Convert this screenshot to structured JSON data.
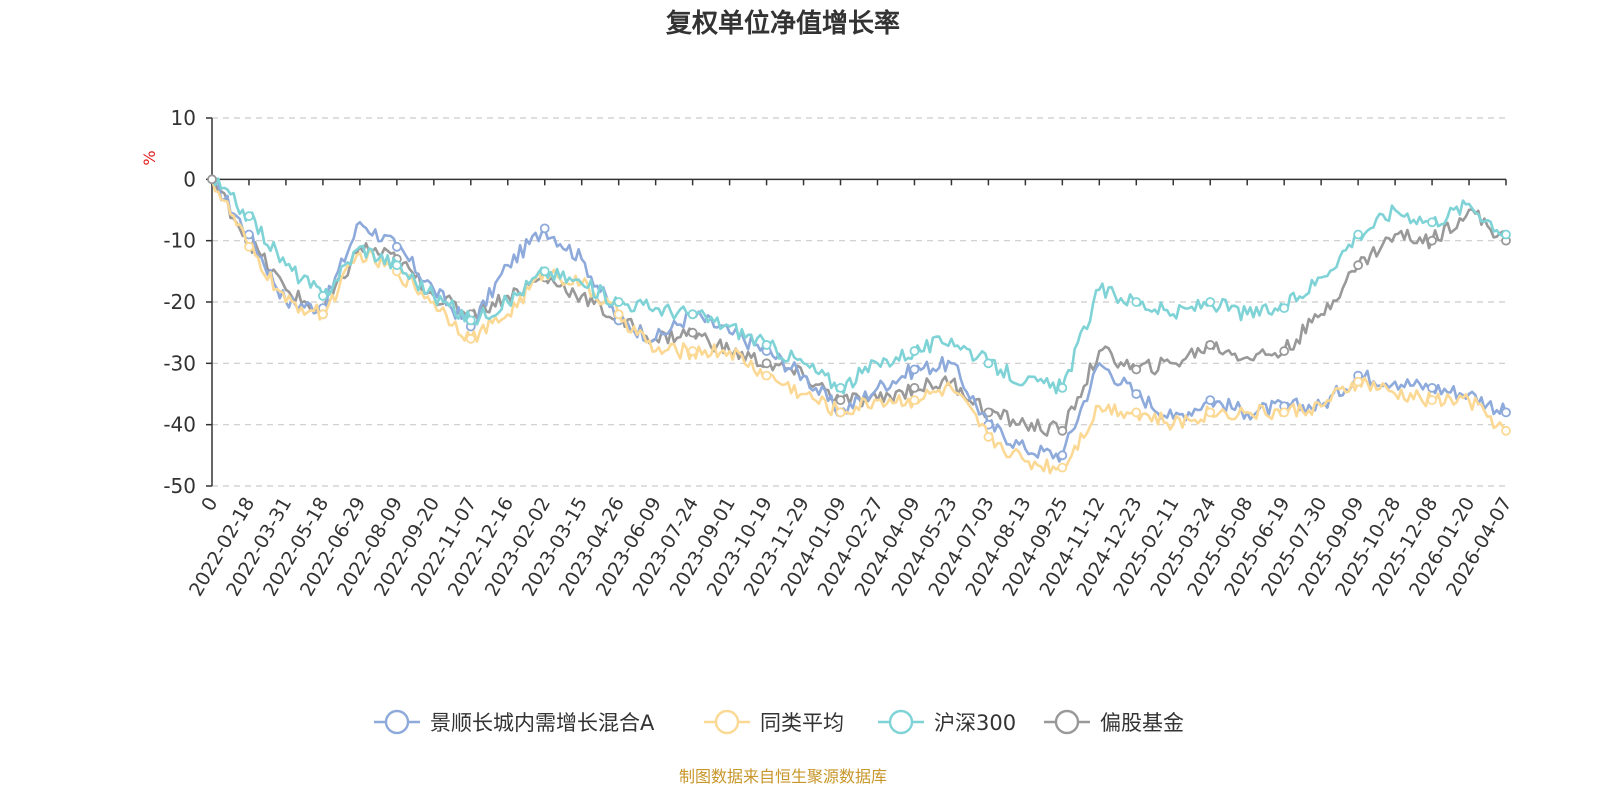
{
  "chart_data": {
    "type": "line",
    "title": "复权单位净值增长率",
    "ylabel": "%",
    "ylim": [
      -50,
      10
    ],
    "yticks": [
      10,
      0,
      -10,
      -20,
      -30,
      -40,
      -50
    ],
    "grid": true,
    "legend_position": "bottom-center",
    "source": "制图数据来自恒生聚源数据库",
    "x_ticks": [
      "0",
      "2022-02-18",
      "2022-03-31",
      "2022-05-18",
      "2022-06-29",
      "2022-08-09",
      "2022-09-20",
      "2022-11-07",
      "2022-12-16",
      "2023-02-02",
      "2023-03-15",
      "2023-04-26",
      "2023-06-09",
      "2023-07-24",
      "2023-09-01",
      "2023-10-19",
      "2023-11-29",
      "2024-01-09",
      "2024-02-27",
      "2024-04-09",
      "2024-05-23",
      "2024-07-03",
      "2024-08-13",
      "2024-09-25",
      "2024-11-12",
      "2024-12-23",
      "2025-02-11",
      "2025-03-24",
      "2025-05-08",
      "2025-06-19",
      "2025-07-30",
      "2025-09-09",
      "2025-10-28",
      "2025-12-08",
      "2026-01-20",
      "2026-04-07"
    ],
    "series": [
      {
        "name": "景顺长城内需增长混合A",
        "color": "#8eaadb",
        "values": [
          0,
          -9,
          -20,
          -21,
          -7,
          -11,
          -18,
          -24,
          -14,
          -8,
          -13,
          -23,
          -26,
          -22,
          -25,
          -28,
          -32,
          -38,
          -34,
          -31,
          -30,
          -40,
          -44,
          -45,
          -30,
          -35,
          -39,
          -36,
          -38,
          -37,
          -37,
          -32,
          -33,
          -34,
          -35,
          -38
        ]
      },
      {
        "name": "同类平均",
        "color": "#fbd995",
        "values": [
          0,
          -11,
          -20,
          -22,
          -12,
          -15,
          -20,
          -26,
          -22,
          -15,
          -17,
          -22,
          -28,
          -28,
          -28,
          -32,
          -35,
          -38,
          -36,
          -36,
          -34,
          -42,
          -46,
          -47,
          -37,
          -38,
          -40,
          -38,
          -38,
          -38,
          -37,
          -33,
          -35,
          -36,
          -36,
          -41
        ]
      },
      {
        "name": "沪深300",
        "color": "#7fd3d6",
        "values": [
          0,
          -6,
          -14,
          -19,
          -11,
          -14,
          -19,
          -23,
          -20,
          -15,
          -17,
          -20,
          -21,
          -22,
          -24,
          -27,
          -30,
          -34,
          -30,
          -28,
          -26,
          -30,
          -33,
          -34,
          -18,
          -20,
          -22,
          -20,
          -22,
          -21,
          -16,
          -9,
          -5,
          -7,
          -4,
          -9
        ]
      },
      {
        "name": "偏股基金",
        "color": "#999999",
        "values": [
          0,
          -10,
          -18,
          -22,
          -11,
          -13,
          -19,
          -22,
          -19,
          -16,
          -19,
          -23,
          -26,
          -25,
          -28,
          -30,
          -32,
          -36,
          -36,
          -34,
          -33,
          -38,
          -40,
          -41,
          -28,
          -31,
          -30,
          -27,
          -29,
          -28,
          -22,
          -14,
          -9,
          -10,
          -5,
          -10
        ]
      }
    ]
  }
}
